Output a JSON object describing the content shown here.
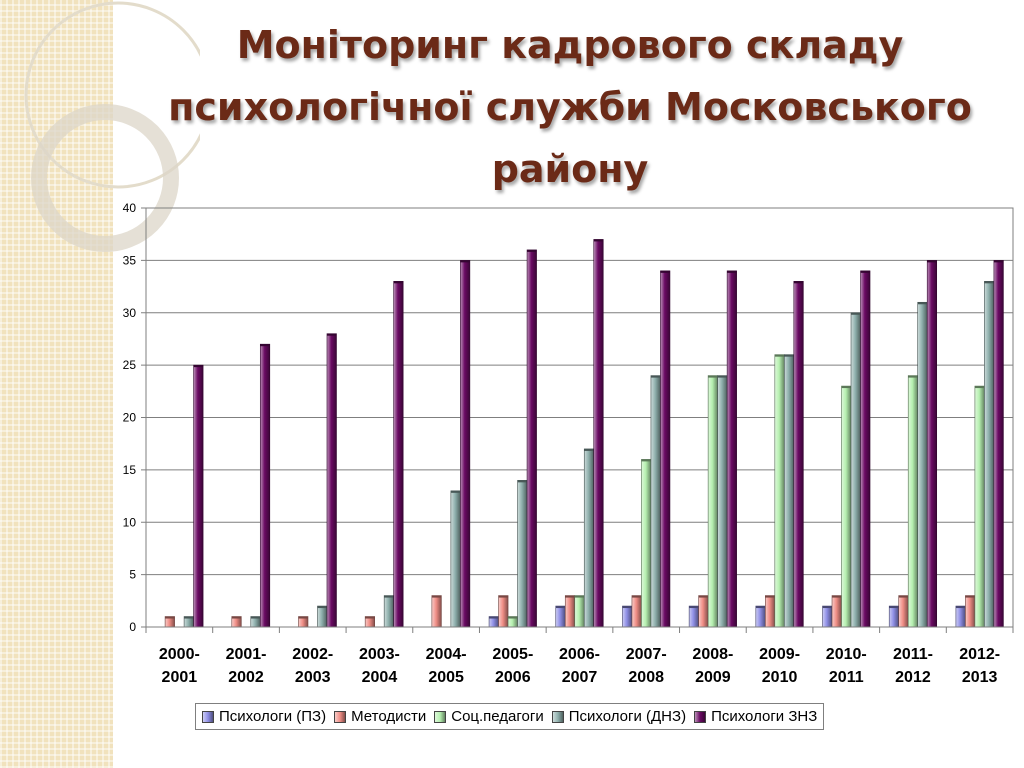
{
  "title_lines": [
    "Моніторинг кадрового складу",
    "психологічної служби Московського",
    "району"
  ],
  "chart_data": {
    "type": "bar",
    "categories": [
      [
        "2000-",
        "2001"
      ],
      [
        "2001-",
        "2002"
      ],
      [
        "2002-",
        "2003"
      ],
      [
        "2003-",
        "2004"
      ],
      [
        "2004-",
        "2005"
      ],
      [
        "2005-",
        "2006"
      ],
      [
        "2006-",
        "2007"
      ],
      [
        "2007-",
        "2008"
      ],
      [
        "2008-",
        "2009"
      ],
      [
        "2009-",
        "2010"
      ],
      [
        "2010-",
        "2011"
      ],
      [
        "2011-",
        "2012"
      ],
      [
        "2012-",
        "2013"
      ]
    ],
    "ylim": [
      0,
      40
    ],
    "yticks": [
      0,
      5,
      10,
      15,
      20,
      25,
      30,
      35,
      40
    ],
    "grid": true,
    "legend_position": "bottom",
    "series": [
      {
        "name": "Психологи (ПЗ)",
        "color": "#8f8fe6",
        "values": [
          0,
          0,
          0,
          0,
          0,
          1,
          2,
          2,
          2,
          2,
          2,
          2,
          2
        ]
      },
      {
        "name": "Методисти",
        "color": "#f08e86",
        "values": [
          1,
          1,
          1,
          1,
          3,
          3,
          3,
          3,
          3,
          3,
          3,
          3,
          3
        ]
      },
      {
        "name": "Соц.педагоги",
        "color": "#b6f0b0",
        "values": [
          0,
          0,
          0,
          0,
          0,
          1,
          3,
          16,
          24,
          26,
          23,
          24,
          23
        ]
      },
      {
        "name": "Психологи (ДНЗ)",
        "color": "#8fb0ad",
        "values": [
          1,
          1,
          2,
          3,
          13,
          14,
          17,
          24,
          24,
          26,
          30,
          31,
          33
        ]
      },
      {
        "name": "Психологи ЗНЗ",
        "color": "#6a0a63",
        "values": [
          25,
          27,
          28,
          33,
          35,
          36,
          37,
          34,
          34,
          33,
          34,
          35,
          35
        ]
      }
    ]
  }
}
